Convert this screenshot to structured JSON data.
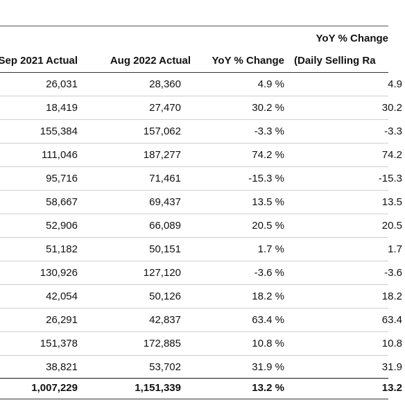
{
  "table": {
    "headers_row1": {
      "col4": "YoY % Change"
    },
    "headers_row2": {
      "col1": "Sep 2021 Actual",
      "col2": "Aug 2022 Actual",
      "col3": "YoY % Change",
      "col4": "(Daily Selling Ra"
    },
    "rows": [
      [
        "26,031",
        "28,360",
        "4.9 %",
        "4.9"
      ],
      [
        "18,419",
        "27,470",
        "30.2 %",
        "30.2"
      ],
      [
        "155,384",
        "157,062",
        "-3.3 %",
        "-3.3"
      ],
      [
        "111,046",
        "187,277",
        "74.2 %",
        "74.2"
      ],
      [
        "95,716",
        "71,461",
        "-15.3 %",
        "-15.3"
      ],
      [
        "58,667",
        "69,437",
        "13.5 %",
        "13.5"
      ],
      [
        "52,906",
        "66,089",
        "20.5 %",
        "20.5"
      ],
      [
        "51,182",
        "50,151",
        "1.7 %",
        "1.7"
      ],
      [
        "130,926",
        "127,120",
        "-3.6 %",
        "-3.6"
      ],
      [
        "42,054",
        "50,126",
        "18.2 %",
        "18.2"
      ],
      [
        "26,291",
        "42,837",
        "63.4 %",
        "63.4"
      ],
      [
        "151,378",
        "172,885",
        "10.8 %",
        "10.8"
      ],
      [
        "38,821",
        "53,702",
        "31.9 %",
        "31.9"
      ]
    ],
    "total": [
      "1,007,229",
      "1,151,339",
      "13.2 %",
      "13.2"
    ]
  }
}
